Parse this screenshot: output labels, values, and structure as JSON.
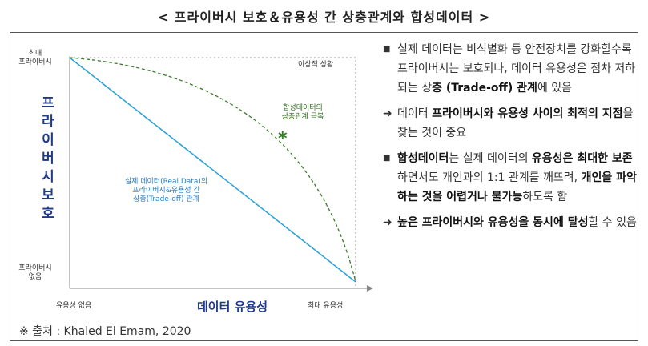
{
  "title": "< 프라이버시 보호＆유용성 간 상충관계와 합성데이터 >",
  "chart": {
    "y_axis_title": "프라이버시 보호",
    "y_top_label": [
      "최대",
      "프라이버시"
    ],
    "y_bottom_label": [
      "프라이버시",
      "없음"
    ],
    "x_axis_title": "데이터 유용성",
    "x_min_label": "유용성 없음",
    "x_max_label": "최대 유용성",
    "ideal_label": "이상적 상황",
    "synthetic_label": [
      "합성데이터의",
      "상충관계 극복"
    ],
    "synthetic_marker": "*",
    "real_label": [
      "실제 데이터(Real Data)의",
      "프라이버시&유용성 간",
      "상충(Trade-off) 관계"
    ],
    "colors": {
      "real_line": "#2a9fd6",
      "synthetic_curve": "#3a7a2a",
      "axis": "#888888",
      "marker": "#2e7d1e"
    }
  },
  "source": "※ 출처 : Khaled El Emam, 2020",
  "bullets": [
    {
      "marker": "■",
      "parts": [
        {
          "t": "실제 데이터는 비식별화 등 안전장치를 강화할수록 프라이버시는 보호되나, 데이터 유용성은 점차 저하되는 상",
          "b": false
        },
        {
          "t": "충 (Trade-off) 관계",
          "b": true
        },
        {
          "t": "에 있음",
          "b": false
        }
      ]
    },
    {
      "marker": "➜",
      "parts": [
        {
          "t": "데이터 ",
          "b": false
        },
        {
          "t": "프라이버시와 유용성 사이의 최적의 지점",
          "b": true
        },
        {
          "t": "을 찾는 것이 중요",
          "b": false
        }
      ]
    },
    {
      "marker": "■",
      "parts": [
        {
          "t": "합성데이터",
          "b": true
        },
        {
          "t": "는 실제 데이터의 ",
          "b": false
        },
        {
          "t": "유용성은 최대한 보존",
          "b": true
        },
        {
          "t": "하면서도 개인과의 1:1 관계를 깨뜨려, ",
          "b": false
        },
        {
          "t": "개인을 파악하는 것을 어렵거나 불가능",
          "b": true
        },
        {
          "t": "하도록 함",
          "b": false
        }
      ]
    },
    {
      "marker": "➜",
      "parts": [
        {
          "t": "높은 프라이버시와 유용성을 동시에 달성",
          "b": true
        },
        {
          "t": "할 수 있음",
          "b": false
        }
      ]
    }
  ]
}
